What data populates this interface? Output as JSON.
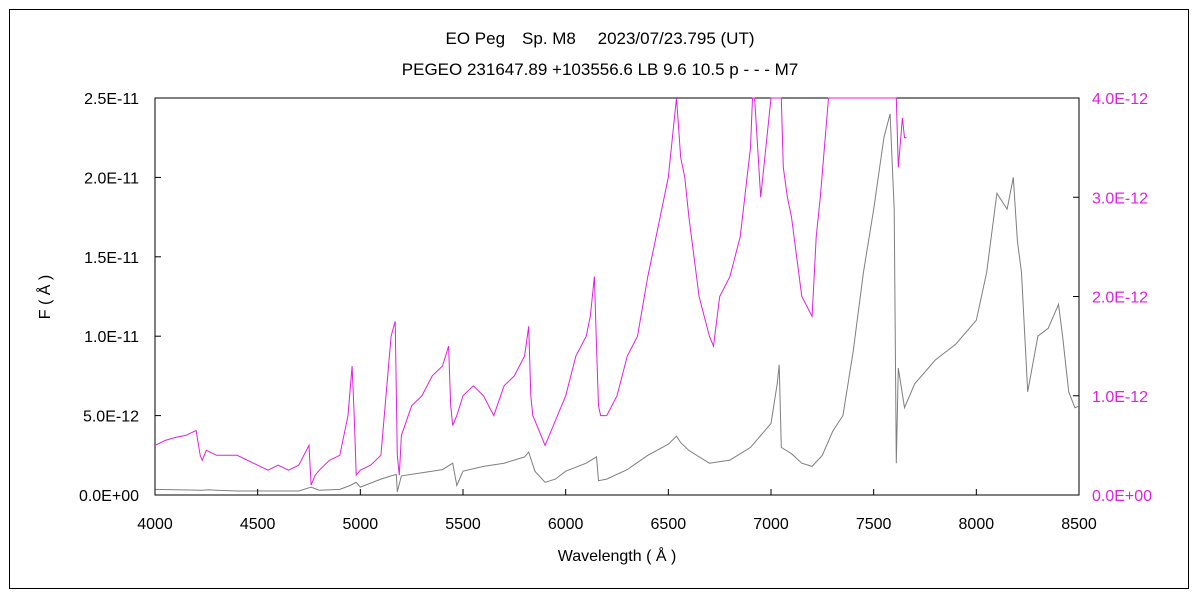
{
  "chart_data": {
    "type": "line",
    "title": "EO Peg　Sp. M8　 2023/07/23.795 (UT)",
    "subtitle": "PEGEO 231647.89 +103556.6 LB 9.6 10.5 p - - - M7",
    "xlabel": "Wavelength ( Å )",
    "ylabel": "F ( Å )",
    "xlim": [
      4000,
      8500
    ],
    "ylim_left": [
      0,
      2.5e-11
    ],
    "ylim_right": [
      0,
      4e-12
    ],
    "grid": false,
    "x_ticks": [
      4000,
      4500,
      5000,
      5500,
      6000,
      6500,
      7000,
      7500,
      8000,
      8500
    ],
    "x_tick_labels": [
      "4000",
      "4500",
      "5000",
      "5500",
      "6000",
      "6500",
      "7000",
      "7500",
      "8000",
      "8500"
    ],
    "y_left_ticks": [
      0,
      5e-12,
      1e-11,
      1.5e-11,
      2e-11,
      2.5e-11
    ],
    "y_left_tick_labels": [
      "0.0E+00",
      "5.0E-12",
      "1.0E-11",
      "1.5E-11",
      "2.0E-11",
      "2.5E-11"
    ],
    "y_right_ticks": [
      0,
      1e-12,
      2e-12,
      3e-12,
      4e-12
    ],
    "y_right_tick_labels": [
      "0.0E+00",
      "1.0E-12",
      "2.0E-12",
      "3.0E-12",
      "4.0E-12"
    ],
    "colors": {
      "left_series": "#7f7f7f",
      "right_series": "#e020e0",
      "right_axis": "#e020e0"
    },
    "series": [
      {
        "axis": "left",
        "color": "#7f7f7f",
        "x": [
          4000,
          4100,
          4200,
          4230,
          4260,
          4300,
          4400,
          4500,
          4600,
          4700,
          4760,
          4800,
          4900,
          4950,
          4980,
          5000,
          5100,
          5150,
          5175,
          5180,
          5200,
          5300,
          5400,
          5450,
          5470,
          5500,
          5600,
          5700,
          5800,
          5820,
          5850,
          5900,
          5950,
          6000,
          6100,
          6150,
          6160,
          6200,
          6300,
          6400,
          6500,
          6540,
          6560,
          6600,
          6700,
          6800,
          6900,
          7000,
          7030,
          7040,
          7050,
          7100,
          7150,
          7200,
          7250,
          7300,
          7350,
          7400,
          7450,
          7500,
          7550,
          7580,
          7600,
          7610,
          7620,
          7650,
          7700,
          7800,
          7900,
          8000,
          8050,
          8100,
          8150,
          8180,
          8200,
          8220,
          8250,
          8300,
          8350,
          8400,
          8420,
          8450,
          8480,
          8500
        ],
        "y": [
          3.5e-13,
          3.3e-13,
          3.1e-13,
          3e-13,
          3.3e-13,
          3e-13,
          2.5e-13,
          2.5e-13,
          2.5e-13,
          2.5e-13,
          5e-13,
          3e-13,
          3.5e-13,
          6e-13,
          8e-13,
          5e-13,
          1e-12,
          1.2e-12,
          1.3e-12,
          2e-13,
          1.2e-12,
          1.4e-12,
          1.6e-12,
          2e-12,
          6e-13,
          1.5e-12,
          1.8e-12,
          2e-12,
          2.4e-12,
          2.7e-12,
          1.5e-12,
          8e-13,
          1e-12,
          1.5e-12,
          2e-12,
          2.4e-12,
          9e-13,
          1e-12,
          1.6e-12,
          2.5e-12,
          3.2e-12,
          3.7e-12,
          3.3e-12,
          2.8e-12,
          2e-12,
          2.2e-12,
          3e-12,
          4.5e-12,
          7e-12,
          8.2e-12,
          3e-12,
          2.6e-12,
          2e-12,
          1.8e-12,
          2.5e-12,
          4e-12,
          5e-12,
          9e-12,
          1.4e-11,
          1.8e-11,
          2.25e-11,
          2.4e-11,
          1.8e-11,
          2e-12,
          8e-12,
          5.5e-12,
          7e-12,
          8.5e-12,
          9.5e-12,
          1.1e-11,
          1.4e-11,
          1.9e-11,
          1.8e-11,
          2e-11,
          1.6e-11,
          1.4e-11,
          6.5e-12,
          1e-11,
          1.05e-11,
          1.2e-11,
          1e-11,
          6.5e-12,
          5.5e-12,
          5.6e-12
        ]
      },
      {
        "axis": "right",
        "color": "#e020e0",
        "x": [
          4000,
          4050,
          4100,
          4150,
          4200,
          4220,
          4230,
          4250,
          4300,
          4400,
          4500,
          4550,
          4600,
          4650,
          4700,
          4750,
          4760,
          4780,
          4800,
          4850,
          4900,
          4940,
          4960,
          4970,
          4980,
          5000,
          5050,
          5100,
          5150,
          5170,
          5180,
          5190,
          5200,
          5250,
          5300,
          5350,
          5400,
          5430,
          5440,
          5450,
          5470,
          5500,
          5550,
          5600,
          5650,
          5700,
          5750,
          5800,
          5820,
          5830,
          5840,
          5850,
          5900,
          5950,
          6000,
          6050,
          6100,
          6120,
          6140,
          6150,
          6160,
          6170,
          6200,
          6250,
          6300,
          6350,
          6400,
          6450,
          6500,
          6520,
          6540,
          6560,
          6580,
          6600,
          6650,
          6700,
          6720,
          6750,
          6800,
          6850,
          6900,
          6910,
          6920,
          6950,
          7000,
          7050,
          7060,
          7080,
          7100,
          7150,
          7200,
          7220,
          7240,
          7260,
          7280,
          7300,
          7340,
          7360,
          7400,
          7500,
          7550,
          7580,
          7600,
          7610,
          7620,
          7640,
          7650,
          7660
        ],
        "y": [
          5e-13,
          5.5e-13,
          5.8e-13,
          6e-13,
          6.5e-13,
          4e-13,
          3.5e-13,
          4.5e-13,
          4e-13,
          4e-13,
          3e-13,
          2.5e-13,
          3e-13,
          2.5e-13,
          3e-13,
          5e-13,
          1e-13,
          2e-13,
          2.5e-13,
          3.5e-13,
          4e-13,
          8e-13,
          1.3e-12,
          8e-13,
          2e-13,
          2.5e-13,
          3e-13,
          4e-13,
          1.6e-12,
          1.75e-12,
          4e-13,
          2e-13,
          6e-13,
          9e-13,
          1e-12,
          1.2e-12,
          1.3e-12,
          1.5e-12,
          9e-13,
          7e-13,
          8e-13,
          1e-12,
          1.1e-12,
          1e-12,
          8e-13,
          1.1e-12,
          1.2e-12,
          1.4e-12,
          1.7e-12,
          1e-12,
          8e-13,
          7.5e-13,
          5e-13,
          7.5e-13,
          1e-12,
          1.4e-12,
          1.6e-12,
          1.8e-12,
          2.2e-12,
          1.5e-12,
          9e-13,
          8e-13,
          8e-13,
          1e-12,
          1.4e-12,
          1.6e-12,
          2.2e-12,
          2.7e-12,
          3.2e-12,
          3.6e-12,
          4e-12,
          3.4e-12,
          3.2e-12,
          2.8e-12,
          2e-12,
          1.6e-12,
          1.5e-12,
          2e-12,
          2.2e-12,
          2.6e-12,
          3.5e-12,
          4e-12,
          4e-12,
          3e-12,
          4e-12,
          4e-12,
          3.3e-12,
          3e-12,
          2.8e-12,
          2e-12,
          1.8e-12,
          2.6e-12,
          3e-12,
          3.5e-12,
          4e-12,
          4e-12,
          4e-12,
          4e-12,
          4e-12,
          4e-12,
          4e-12,
          4e-12,
          4e-12,
          4e-12,
          3.3e-12,
          3.8e-12,
          3.6e-12,
          3.6e-12
        ]
      }
    ]
  }
}
